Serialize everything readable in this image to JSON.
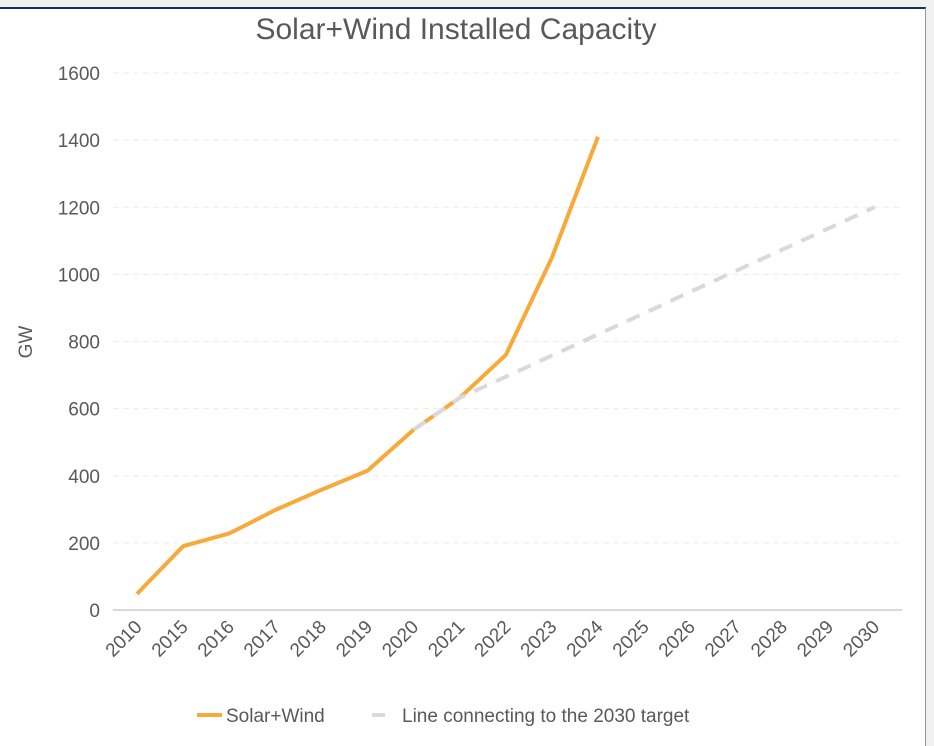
{
  "chart_data": {
    "type": "line",
    "title": "Solar+Wind Installed Capacity",
    "xlabel": "",
    "ylabel": "GW",
    "ylim": [
      0,
      1600
    ],
    "yticks": [
      0,
      200,
      400,
      600,
      800,
      1000,
      1200,
      1400,
      1600
    ],
    "grid": true,
    "legend_position": "bottom",
    "categories": [
      "2010",
      "2015",
      "2016",
      "2017",
      "2018",
      "2019",
      "2020",
      "2021",
      "2022",
      "2023",
      "2024",
      "2025",
      "2026",
      "2027",
      "2028",
      "2029",
      "2030"
    ],
    "series": [
      {
        "name": "Solar+Wind",
        "color": "#f9a83a",
        "style": "solid",
        "values": [
          48,
          190,
          228,
          298,
          358,
          415,
          537,
          632,
          760,
          1050,
          1410,
          null,
          null,
          null,
          null,
          null,
          null
        ]
      },
      {
        "name": "Line connecting to the 2030 target",
        "color": "#d9d9d9",
        "style": "dashed",
        "values": [
          null,
          null,
          null,
          null,
          null,
          null,
          537,
          632,
          695,
          758,
          821,
          884,
          948,
          1011,
          1074,
          1137,
          1200
        ]
      }
    ]
  }
}
